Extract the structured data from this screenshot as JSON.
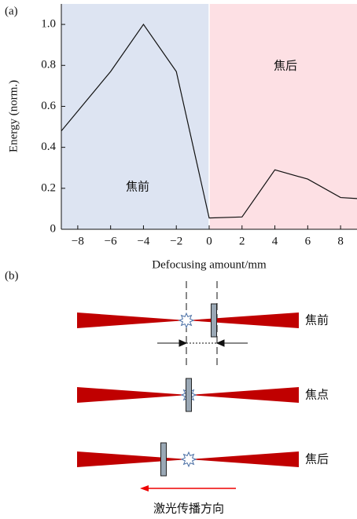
{
  "chart_data": {
    "type": "line",
    "panel_label": "(a)",
    "x_label": "Defocusing amount/mm",
    "y_label": "Energy (norm.)",
    "x": [
      -9,
      -6,
      -4,
      -2,
      0,
      2,
      4,
      6,
      8,
      9
    ],
    "values": [
      0.48,
      0.77,
      1.0,
      0.77,
      0.055,
      0.06,
      0.29,
      0.245,
      0.155,
      0.15
    ],
    "color": "#111111",
    "xlim": [
      -9,
      9
    ],
    "ylim": [
      0,
      1.1
    ],
    "xticks": [
      {
        "value": -8,
        "label": "−8"
      },
      {
        "value": -6,
        "label": "−6"
      },
      {
        "value": -4,
        "label": "−4"
      },
      {
        "value": -2,
        "label": "−2"
      },
      0,
      2,
      4,
      6,
      8
    ],
    "yticks": [
      0,
      0.2,
      0.4,
      0.6,
      0.8,
      {
        "value": 1,
        "label": "1.0"
      }
    ],
    "regions": [
      {
        "label": "焦前",
        "range": [
          -9,
          0
        ],
        "color": "#dde4f2"
      },
      {
        "label": "焦后",
        "range": [
          0,
          9
        ],
        "color": "#fde0e4"
      }
    ]
  },
  "diagram": {
    "panel_label": "(b)",
    "rows": [
      {
        "label": "焦前"
      },
      {
        "label": "焦点"
      },
      {
        "label": "焦后"
      }
    ],
    "direction": "激光传播方向"
  }
}
